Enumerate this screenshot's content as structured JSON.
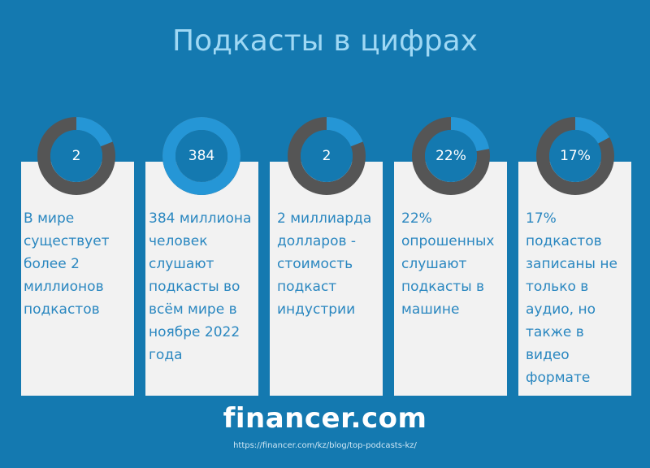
{
  "title": "Подкасты в цифрах",
  "colors": {
    "background": "#1479b0",
    "card": "#f2f2f2",
    "ring_track": "#555555",
    "ring_fill": "#2596d6",
    "ring_inner": "#1479b0",
    "text": "#2a87c0",
    "title": "#9fd8f4"
  },
  "cards": [
    {
      "value": "2",
      "fraction": 0.19,
      "text": "В мире существует более 2 миллионов подкастов"
    },
    {
      "value": "384",
      "fraction": 1.0,
      "text": "384 миллиона человек слушают подкасты во всём мире в ноябре 2022 года"
    },
    {
      "value": "2",
      "fraction": 0.19,
      "text": "2 миллиарда долларов - стоимость подкаст индустрии"
    },
    {
      "value": "22%",
      "fraction": 0.22,
      "text": "22% опрошенных слушают подкасты в машине"
    },
    {
      "value": "17%",
      "fraction": 0.17,
      "text": "17% подкастов записаны не только в аудио, но также в видео формате"
    }
  ],
  "logo": "financer.com",
  "url": "https://financer.com/kz/blog/top-podcasts-kz/"
}
